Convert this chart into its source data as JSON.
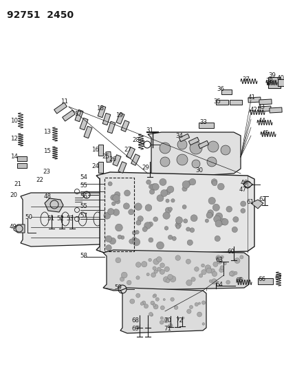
{
  "title": "92751  2450",
  "bg_color": "#ffffff",
  "line_color": "#1a1a1a",
  "text_color": "#1a1a1a",
  "title_fontsize": 10,
  "label_fontsize": 6.2,
  "figsize": [
    4.14,
    5.33
  ],
  "dpi": 100,
  "xlim": [
    0,
    414
  ],
  "ylim": [
    0,
    533
  ]
}
